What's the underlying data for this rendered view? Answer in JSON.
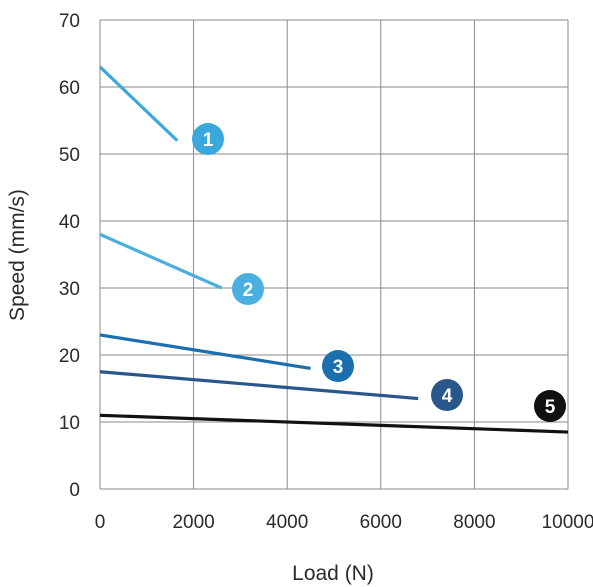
{
  "chart_data": {
    "type": "line",
    "title": "",
    "xlabel": "Load (N)",
    "ylabel": "Speed (mm/s)",
    "xlim": [
      0,
      10000
    ],
    "ylim": [
      0,
      70
    ],
    "x_ticks": [
      0,
      2000,
      4000,
      6000,
      8000,
      10000
    ],
    "y_ticks": [
      0,
      10,
      20,
      30,
      40,
      50,
      60,
      70
    ],
    "x_tick_labels": [
      "0",
      "2000",
      "4000",
      "6000",
      "8000",
      "10000"
    ],
    "y_tick_labels": [
      "0",
      "10",
      "20",
      "30",
      "40",
      "50",
      "60",
      "70"
    ],
    "grid": true,
    "legend": "none",
    "series": [
      {
        "label": "1",
        "color": "#3aa8dc",
        "x": [
          0,
          1650
        ],
        "y": [
          63,
          52
        ]
      },
      {
        "label": "2",
        "color": "#4aaedf",
        "x": [
          0,
          2600
        ],
        "y": [
          38,
          30
        ]
      },
      {
        "label": "3",
        "color": "#1b6fae",
        "x": [
          0,
          4500
        ],
        "y": [
          23,
          18
        ]
      },
      {
        "label": "4",
        "color": "#2a578b",
        "x": [
          0,
          6800
        ],
        "y": [
          17.5,
          13.5
        ]
      },
      {
        "label": "5",
        "color": "#111111",
        "x": [
          0,
          10000
        ],
        "y": [
          11,
          8.5
        ]
      }
    ]
  }
}
